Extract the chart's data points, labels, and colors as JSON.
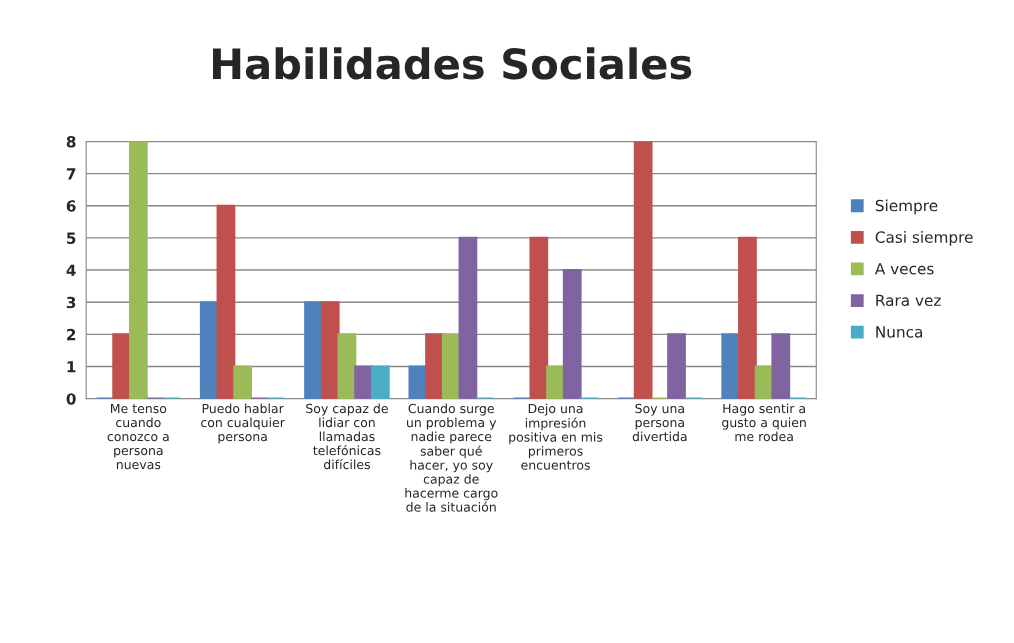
{
  "chart_data": {
    "type": "bar",
    "title": "Habilidades Sociales",
    "categories": [
      "Me tenso\ncuando\nconozco a\npersona\nnuevas",
      "Puedo hablar\ncon cualquier\npersona",
      "Soy capaz de\nlidiar con\nllamadas\ntelefónicas\ndifíciles",
      "Cuando surge\nun problema y\nnadie parece\nsaber qué\nhacer, yo soy\ncapaz de\nhacerme cargo\nde la situación",
      "Dejo una\nimpresión\npositiva en mis\nprimeros\nencuentros",
      "Soy una\npersona\ndivertida",
      "Hago sentir a\ngusto a quien\nme rodea"
    ],
    "series": [
      {
        "name": "Siempre",
        "color": "#4f81bd",
        "values": [
          0,
          3,
          3,
          1,
          0,
          0,
          2
        ]
      },
      {
        "name": "Casi siempre",
        "color": "#c0504d",
        "values": [
          2,
          6,
          3,
          2,
          5,
          8,
          5
        ]
      },
      {
        "name": "A veces",
        "color": "#9bbb59",
        "values": [
          8,
          1,
          2,
          2,
          1,
          0,
          1
        ]
      },
      {
        "name": "Rara vez",
        "color": "#8064a2",
        "values": [
          0,
          0,
          1,
          5,
          4,
          2,
          2
        ]
      },
      {
        "name": "Nunca",
        "color": "#4bacc6",
        "values": [
          0,
          0,
          1,
          0,
          0,
          0,
          0
        ]
      }
    ],
    "ylim": [
      0,
      8
    ],
    "yticks": [
      0,
      1,
      2,
      3,
      4,
      5,
      6,
      7,
      8
    ],
    "grid": "y",
    "legend": "right"
  }
}
